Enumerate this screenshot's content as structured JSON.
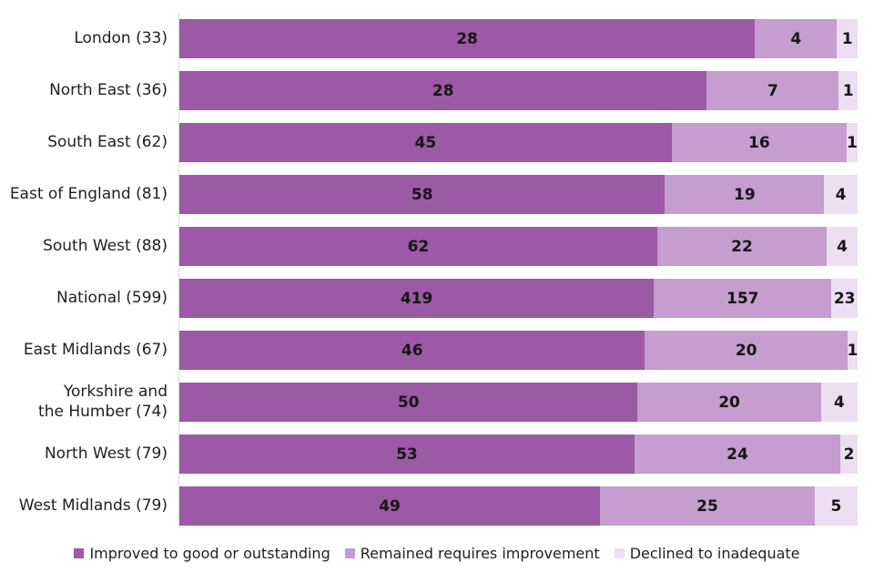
{
  "chart_data": {
    "type": "bar",
    "orientation": "horizontal",
    "stacked": "percent",
    "title": "",
    "xlabel": "",
    "ylabel": "",
    "grid": false,
    "legend_position": "bottom",
    "value_labels": "inside-center",
    "categories": [
      "London (33)",
      "North East (36)",
      "South East (62)",
      "East of England (81)",
      "South West (88)",
      "National (599)",
      "East Midlands (67)",
      "Yorkshire and\nthe Humber (74)",
      "North West (79)",
      "West Midlands (79)"
    ],
    "series": [
      {
        "name": "Improved to good or outstanding",
        "color": "#9c59a5",
        "values": [
          28,
          28,
          45,
          58,
          62,
          419,
          46,
          50,
          53,
          49
        ]
      },
      {
        "name": "Remained requires improvement",
        "color": "#c59dce",
        "values": [
          4,
          7,
          16,
          19,
          22,
          157,
          20,
          20,
          24,
          25
        ]
      },
      {
        "name": "Declined to inadequate",
        "color": "#ecdff2",
        "values": [
          1,
          1,
          1,
          4,
          4,
          23,
          1,
          4,
          2,
          5
        ]
      }
    ],
    "row_totals": [
      33,
      36,
      62,
      81,
      88,
      599,
      67,
      74,
      79,
      79
    ]
  },
  "colors": {
    "axis_line": "#d9d9d9",
    "text": "#1f1f1f"
  }
}
